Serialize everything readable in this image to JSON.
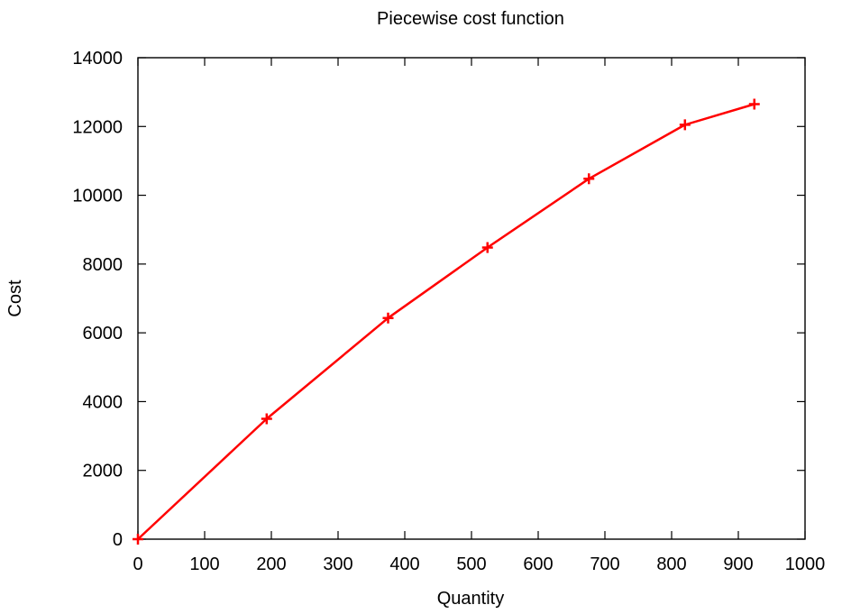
{
  "chart_data": {
    "type": "line",
    "title": "Piecewise cost function",
    "xlabel": "Quantity",
    "ylabel": "Cost",
    "xlim": [
      0,
      1000
    ],
    "ylim": [
      0,
      14000
    ],
    "x_ticks": [
      0,
      100,
      200,
      300,
      400,
      500,
      600,
      700,
      800,
      900,
      1000
    ],
    "y_ticks": [
      0,
      2000,
      4000,
      6000,
      8000,
      10000,
      12000,
      14000
    ],
    "grid": false,
    "legend": "none",
    "marker": "plus",
    "series": [
      {
        "color": "#ff0000",
        "x": [
          0,
          193,
          375,
          524,
          676,
          820,
          924
        ],
        "y": [
          0,
          3500,
          6430,
          8480,
          10480,
          12050,
          12650
        ]
      }
    ]
  }
}
